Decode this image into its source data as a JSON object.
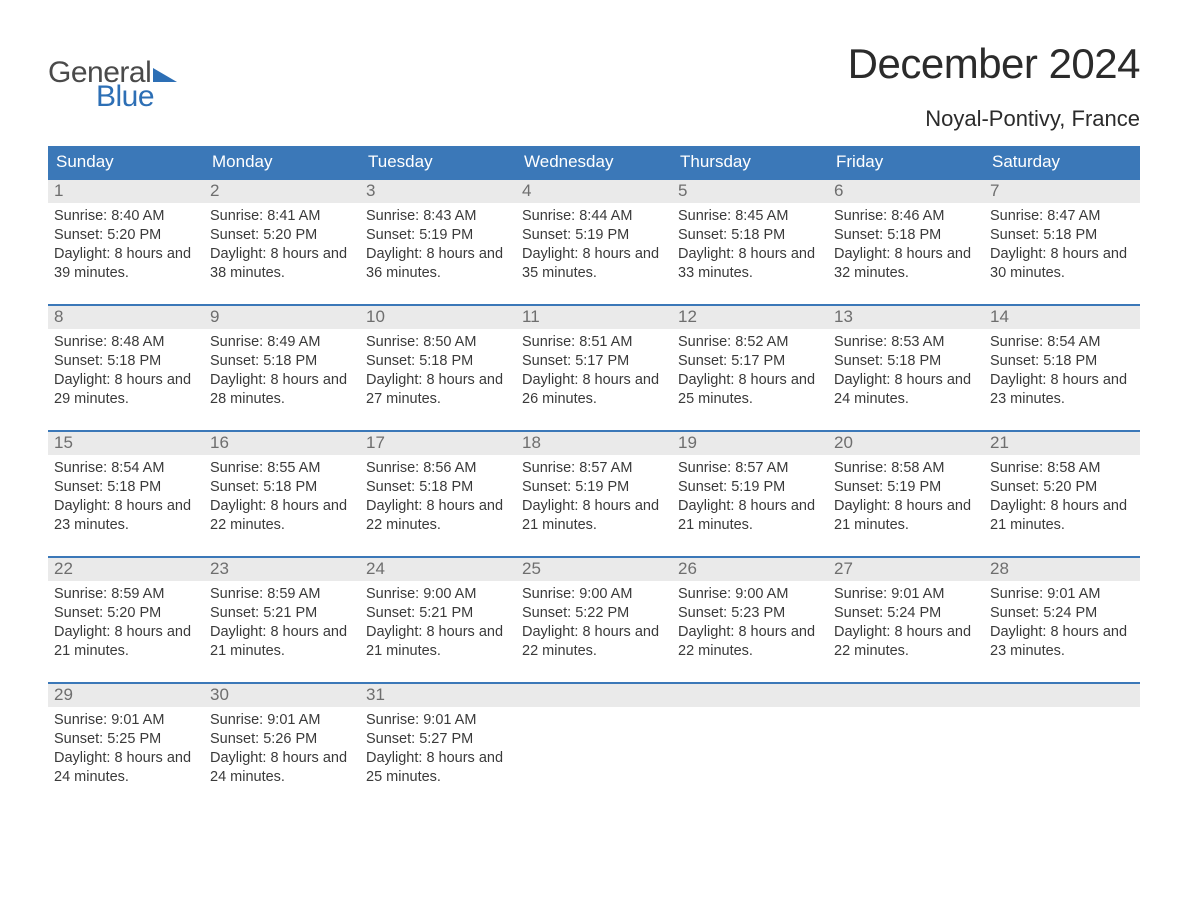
{
  "logo": {
    "general": "General",
    "blue": "Blue",
    "tri_color": "#2d6fb5"
  },
  "header": {
    "month_title": "December 2024",
    "location": "Noyal-Pontivy, France"
  },
  "colors": {
    "header_bg": "#3b78b8",
    "header_text": "#ffffff",
    "week_border": "#3b78b8",
    "daynum_bg": "#eaeaea",
    "daynum_text": "#6e6e6e",
    "body_text": "#3a3a3a",
    "page_bg": "#ffffff"
  },
  "typography": {
    "month_title_pt": 42,
    "location_pt": 22,
    "dayhead_pt": 17,
    "daynum_pt": 17,
    "cell_body_pt": 14.5
  },
  "weekday_headers": [
    "Sunday",
    "Monday",
    "Tuesday",
    "Wednesday",
    "Thursday",
    "Friday",
    "Saturday"
  ],
  "days": [
    {
      "n": "1",
      "sunrise": "8:40 AM",
      "sunset": "5:20 PM",
      "daylight": "8 hours and 39 minutes."
    },
    {
      "n": "2",
      "sunrise": "8:41 AM",
      "sunset": "5:20 PM",
      "daylight": "8 hours and 38 minutes."
    },
    {
      "n": "3",
      "sunrise": "8:43 AM",
      "sunset": "5:19 PM",
      "daylight": "8 hours and 36 minutes."
    },
    {
      "n": "4",
      "sunrise": "8:44 AM",
      "sunset": "5:19 PM",
      "daylight": "8 hours and 35 minutes."
    },
    {
      "n": "5",
      "sunrise": "8:45 AM",
      "sunset": "5:18 PM",
      "daylight": "8 hours and 33 minutes."
    },
    {
      "n": "6",
      "sunrise": "8:46 AM",
      "sunset": "5:18 PM",
      "daylight": "8 hours and 32 minutes."
    },
    {
      "n": "7",
      "sunrise": "8:47 AM",
      "sunset": "5:18 PM",
      "daylight": "8 hours and 30 minutes."
    },
    {
      "n": "8",
      "sunrise": "8:48 AM",
      "sunset": "5:18 PM",
      "daylight": "8 hours and 29 minutes."
    },
    {
      "n": "9",
      "sunrise": "8:49 AM",
      "sunset": "5:18 PM",
      "daylight": "8 hours and 28 minutes."
    },
    {
      "n": "10",
      "sunrise": "8:50 AM",
      "sunset": "5:18 PM",
      "daylight": "8 hours and 27 minutes."
    },
    {
      "n": "11",
      "sunrise": "8:51 AM",
      "sunset": "5:17 PM",
      "daylight": "8 hours and 26 minutes."
    },
    {
      "n": "12",
      "sunrise": "8:52 AM",
      "sunset": "5:17 PM",
      "daylight": "8 hours and 25 minutes."
    },
    {
      "n": "13",
      "sunrise": "8:53 AM",
      "sunset": "5:18 PM",
      "daylight": "8 hours and 24 minutes."
    },
    {
      "n": "14",
      "sunrise": "8:54 AM",
      "sunset": "5:18 PM",
      "daylight": "8 hours and 23 minutes."
    },
    {
      "n": "15",
      "sunrise": "8:54 AM",
      "sunset": "5:18 PM",
      "daylight": "8 hours and 23 minutes."
    },
    {
      "n": "16",
      "sunrise": "8:55 AM",
      "sunset": "5:18 PM",
      "daylight": "8 hours and 22 minutes."
    },
    {
      "n": "17",
      "sunrise": "8:56 AM",
      "sunset": "5:18 PM",
      "daylight": "8 hours and 22 minutes."
    },
    {
      "n": "18",
      "sunrise": "8:57 AM",
      "sunset": "5:19 PM",
      "daylight": "8 hours and 21 minutes."
    },
    {
      "n": "19",
      "sunrise": "8:57 AM",
      "sunset": "5:19 PM",
      "daylight": "8 hours and 21 minutes."
    },
    {
      "n": "20",
      "sunrise": "8:58 AM",
      "sunset": "5:19 PM",
      "daylight": "8 hours and 21 minutes."
    },
    {
      "n": "21",
      "sunrise": "8:58 AM",
      "sunset": "5:20 PM",
      "daylight": "8 hours and 21 minutes."
    },
    {
      "n": "22",
      "sunrise": "8:59 AM",
      "sunset": "5:20 PM",
      "daylight": "8 hours and 21 minutes."
    },
    {
      "n": "23",
      "sunrise": "8:59 AM",
      "sunset": "5:21 PM",
      "daylight": "8 hours and 21 minutes."
    },
    {
      "n": "24",
      "sunrise": "9:00 AM",
      "sunset": "5:21 PM",
      "daylight": "8 hours and 21 minutes."
    },
    {
      "n": "25",
      "sunrise": "9:00 AM",
      "sunset": "5:22 PM",
      "daylight": "8 hours and 22 minutes."
    },
    {
      "n": "26",
      "sunrise": "9:00 AM",
      "sunset": "5:23 PM",
      "daylight": "8 hours and 22 minutes."
    },
    {
      "n": "27",
      "sunrise": "9:01 AM",
      "sunset": "5:24 PM",
      "daylight": "8 hours and 22 minutes."
    },
    {
      "n": "28",
      "sunrise": "9:01 AM",
      "sunset": "5:24 PM",
      "daylight": "8 hours and 23 minutes."
    },
    {
      "n": "29",
      "sunrise": "9:01 AM",
      "sunset": "5:25 PM",
      "daylight": "8 hours and 24 minutes."
    },
    {
      "n": "30",
      "sunrise": "9:01 AM",
      "sunset": "5:26 PM",
      "daylight": "8 hours and 24 minutes."
    },
    {
      "n": "31",
      "sunrise": "9:01 AM",
      "sunset": "5:27 PM",
      "daylight": "8 hours and 25 minutes."
    }
  ],
  "labels": {
    "sunrise": "Sunrise:",
    "sunset": "Sunset:",
    "daylight": "Daylight:"
  },
  "layout": {
    "weeks": 5,
    "cols": 7,
    "trailing_empty": 4
  }
}
